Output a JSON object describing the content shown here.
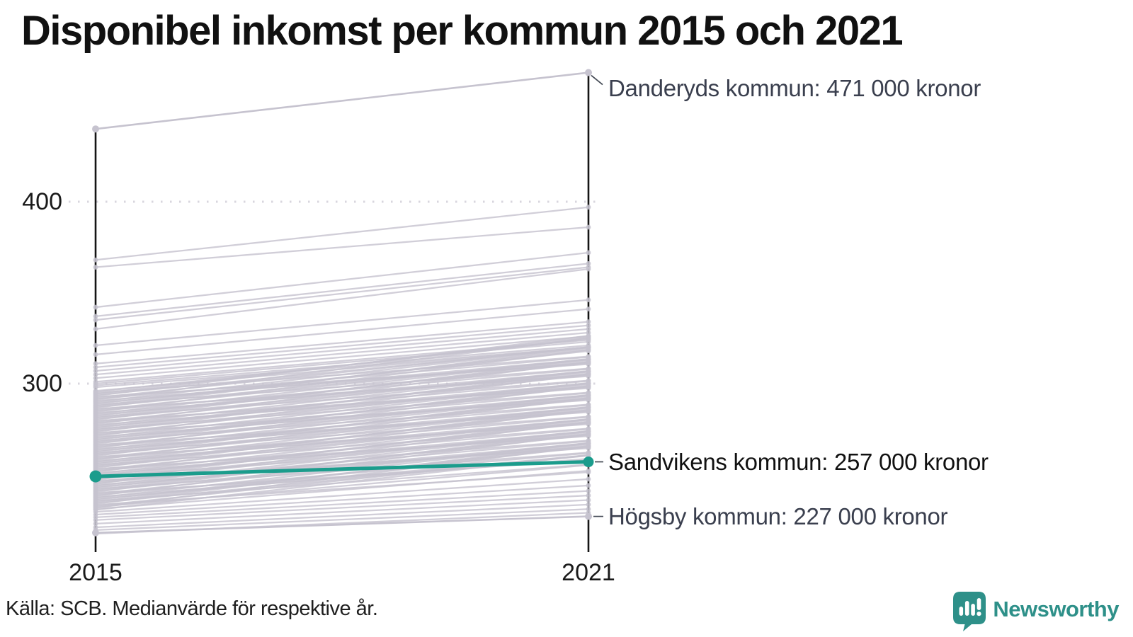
{
  "title": "Disponibel inkomst per kommun 2015 och 2021",
  "source": "Källa: SCB. Medianvärde för respektive år.",
  "branding": {
    "name": "Newsworthy",
    "icon": "newsworthy-speech-bubble-bar-chart-icon",
    "brand_color": "#2e9089"
  },
  "colors": {
    "highlight_teal": "#1b9c8c",
    "slope_gray": "#c6c3cf",
    "axis_black": "#151515",
    "grid_gray": "#d8d6de",
    "tick_text": "#1a1a1a",
    "annotation_text": "#3a3f4e",
    "highlight_annotation_text": "#111111"
  },
  "chart_data": {
    "type": "line",
    "subtype": "slopegraph",
    "x": [
      2015,
      2021
    ],
    "x_labels": [
      "2015",
      "2021"
    ],
    "y_ticks": [
      300,
      400
    ],
    "y_tick_labels": [
      "300",
      "400"
    ],
    "ylim": [
      210,
      480
    ],
    "unit": "tusen kronor",
    "grid": "dotted horizontal at y ticks",
    "legend_position": "none",
    "annotated_series": [
      {
        "name": "Danderyds kommun",
        "values": [
          440,
          471
        ],
        "label": "Danderyds kommun: 471 000 kronor",
        "highlight": false,
        "label_dy": 22
      },
      {
        "name": "Sandvikens kommun",
        "values": [
          249,
          257
        ],
        "label": "Sandvikens kommun: 257 000 kronor",
        "highlight": true,
        "label_dy": 0
      },
      {
        "name": "Högsby kommun",
        "values": [
          218,
          227
        ],
        "label": "Högsby kommun: 227 000 kronor",
        "highlight": false,
        "label_dy": 0
      }
    ],
    "background_series": [
      [
        368,
        397
      ],
      [
        364,
        386
      ],
      [
        342,
        372
      ],
      [
        337,
        366
      ],
      [
        335,
        364
      ],
      [
        330,
        363
      ],
      [
        321,
        346
      ],
      [
        316,
        341
      ],
      [
        311,
        334
      ],
      [
        309,
        332
      ],
      [
        307,
        330
      ],
      [
        305,
        328
      ],
      [
        303,
        326
      ],
      [
        301,
        324
      ],
      [
        300,
        323
      ],
      [
        299,
        321
      ],
      [
        298,
        320
      ],
      [
        296.0,
        320.0
      ],
      [
        295.5,
        324.5
      ],
      [
        294.9,
        314.9
      ],
      [
        294.4,
        325.4
      ],
      [
        293.8,
        319.8
      ],
      [
        293.3,
        326.3
      ],
      [
        292.7,
        310.7
      ],
      [
        292.2,
        320.2
      ],
      [
        291.6,
        314.6
      ],
      [
        291.1,
        325.1
      ],
      [
        290.5,
        311.5
      ],
      [
        290.0,
        320.0
      ],
      [
        289.4,
        313.4
      ],
      [
        288.9,
        317.9
      ],
      [
        288.3,
        308.3
      ],
      [
        287.8,
        318.8
      ],
      [
        287.2,
        313.2
      ],
      [
        286.7,
        319.7
      ],
      [
        286.1,
        304.1
      ],
      [
        285.6,
        313.6
      ],
      [
        285.0,
        308.0
      ],
      [
        284.5,
        318.5
      ],
      [
        283.9,
        304.9
      ],
      [
        283.4,
        313.4
      ],
      [
        282.8,
        306.8
      ],
      [
        282.3,
        311.3
      ],
      [
        281.7,
        301.7
      ],
      [
        281.2,
        312.2
      ],
      [
        280.6,
        306.6
      ],
      [
        280.1,
        313.1
      ],
      [
        279.5,
        297.5
      ],
      [
        279.0,
        307.0
      ],
      [
        278.4,
        301.4
      ],
      [
        277.9,
        311.9
      ],
      [
        277.3,
        298.3
      ],
      [
        276.8,
        306.8
      ],
      [
        276.2,
        300.2
      ],
      [
        275.7,
        304.7
      ],
      [
        275.1,
        295.1
      ],
      [
        274.6,
        305.6
      ],
      [
        274.0,
        300.0
      ],
      [
        273.5,
        306.5
      ],
      [
        272.9,
        290.9
      ],
      [
        272.4,
        300.4
      ],
      [
        271.8,
        294.8
      ],
      [
        271.3,
        305.3
      ],
      [
        270.7,
        291.7
      ],
      [
        270.2,
        300.2
      ],
      [
        269.6,
        293.6
      ],
      [
        269.1,
        298.1
      ],
      [
        268.5,
        288.5
      ],
      [
        268.0,
        299.0
      ],
      [
        267.4,
        293.4
      ],
      [
        266.9,
        299.9
      ],
      [
        266.3,
        284.3
      ],
      [
        265.8,
        293.8
      ],
      [
        265.2,
        288.2
      ],
      [
        264.7,
        298.7
      ],
      [
        264.1,
        285.1
      ],
      [
        263.6,
        293.6
      ],
      [
        263.0,
        287.0
      ],
      [
        262.5,
        291.5
      ],
      [
        261.9,
        281.9
      ],
      [
        261.4,
        292.4
      ],
      [
        260.8,
        286.8
      ],
      [
        260.3,
        293.3
      ],
      [
        259.7,
        277.7
      ],
      [
        259.2,
        287.2
      ],
      [
        258.6,
        281.6
      ],
      [
        258.1,
        292.1
      ],
      [
        257.5,
        278.5
      ],
      [
        257.0,
        287.0
      ],
      [
        256.4,
        280.4
      ],
      [
        255.9,
        284.9
      ],
      [
        255.3,
        275.3
      ],
      [
        254.8,
        285.8
      ],
      [
        254.2,
        280.2
      ],
      [
        253.7,
        286.7
      ],
      [
        253.1,
        271.1
      ],
      [
        252.6,
        280.6
      ],
      [
        252.0,
        275.0
      ],
      [
        251.5,
        285.5
      ],
      [
        250.9,
        271.9
      ],
      [
        250.4,
        280.4
      ],
      [
        249.8,
        273.8
      ],
      [
        249.3,
        278.3
      ],
      [
        248.7,
        268.7
      ],
      [
        248.2,
        279.2
      ],
      [
        247.6,
        273.6
      ],
      [
        247.1,
        280.1
      ],
      [
        246.5,
        264.5
      ],
      [
        246.0,
        274.0
      ],
      [
        245.4,
        268.4
      ],
      [
        244.9,
        278.9
      ],
      [
        244.3,
        265.3
      ],
      [
        243.8,
        273.8
      ],
      [
        243.2,
        267.2
      ],
      [
        242.7,
        271.7
      ],
      [
        242.1,
        262.1
      ],
      [
        241.6,
        272.6
      ],
      [
        241.0,
        267.0
      ],
      [
        240.5,
        273.5
      ],
      [
        239.9,
        257.9
      ],
      [
        239.4,
        267.4
      ],
      [
        238.8,
        261.8
      ],
      [
        238.3,
        272.3
      ],
      [
        237.7,
        258.7
      ],
      [
        237.2,
        267.2
      ],
      [
        236.6,
        260.6
      ],
      [
        236.1,
        265.1
      ],
      [
        235.5,
        255.5
      ],
      [
        235.0,
        266.0
      ],
      [
        234.4,
        260.4
      ],
      [
        233.9,
        266.9
      ],
      [
        233.3,
        251.3
      ],
      [
        232.8,
        260.8
      ],
      [
        232.2,
        255.2
      ],
      [
        231.7,
        265.7
      ],
      [
        231.1,
        252.1
      ],
      [
        230.6,
        260.6
      ],
      [
        229.5,
        247.5
      ],
      [
        228.0,
        244.0
      ],
      [
        226.5,
        241.0
      ],
      [
        225.0,
        238.5
      ],
      [
        223.0,
        236.0
      ],
      [
        221.0,
        233.5
      ],
      [
        219.5,
        231.0
      ],
      [
        217.5,
        229.0
      ]
    ]
  }
}
